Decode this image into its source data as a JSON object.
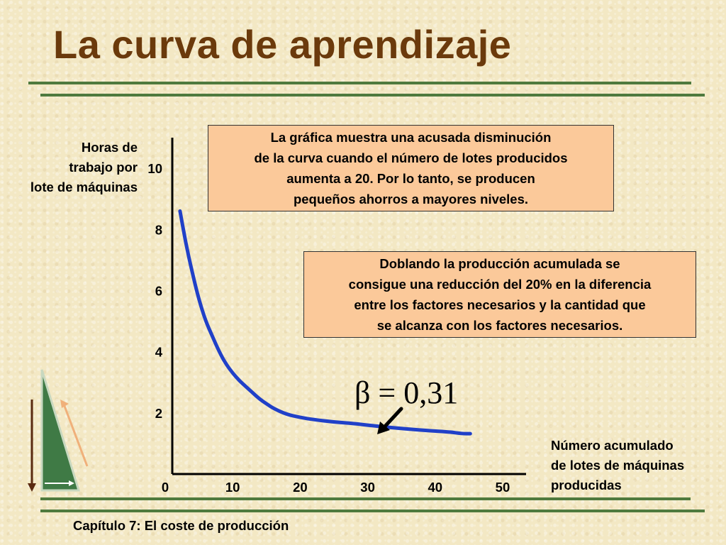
{
  "slide": {
    "title": "La curva de aprendizaje",
    "footer": "Capítulo 7: El coste de producción"
  },
  "annotations": {
    "box1_lines": [
      "La gráfica muestra una acusada disminución",
      "de la curva cuando el número de lotes producidos",
      "aumenta a 20. Por lo tanto, se producen",
      "pequeños ahorros a mayores niveles."
    ],
    "box2_lines": [
      "Doblando la producción acumulada se",
      "consigue una reducción del 20% en la diferencia",
      "entre los factores necesarios y la cantidad que",
      "se alcanza con los factores necesarios."
    ],
    "equation": "β = 0,31"
  },
  "colors": {
    "title": "#6b3a0c",
    "rule": "#4f7a3e",
    "curve": "#2040c8",
    "box_fill": "#fbc99a",
    "triangle": "#3f7a45"
  },
  "decoration": {
    "icon": "green-triangle-with-arrows-icon"
  },
  "chart_data": {
    "type": "line",
    "ylabel_lines": [
      "Horas de",
      "trabajo por",
      "lote de máquinas"
    ],
    "xlabel_lines": [
      "Número acumulado",
      "de lotes de máquinas",
      "producidas"
    ],
    "x_ticks": [
      "0",
      "10",
      "20",
      "30",
      "40",
      "50"
    ],
    "y_ticks": [
      "2",
      "4",
      "6",
      "8",
      "10"
    ],
    "xlim": [
      0,
      52
    ],
    "ylim": [
      0,
      11
    ],
    "series": [
      {
        "points": [
          [
            2.2,
            8.6
          ],
          [
            3,
            7.6
          ],
          [
            4,
            6.6
          ],
          [
            5,
            5.7
          ],
          [
            6,
            5.0
          ],
          [
            7,
            4.5
          ],
          [
            8,
            4.0
          ],
          [
            9,
            3.6
          ],
          [
            10,
            3.3
          ],
          [
            11,
            3.05
          ],
          [
            12,
            2.85
          ],
          [
            13,
            2.65
          ],
          [
            14,
            2.45
          ],
          [
            15,
            2.3
          ],
          [
            16,
            2.15
          ],
          [
            18,
            1.95
          ],
          [
            20,
            1.85
          ],
          [
            22,
            1.78
          ],
          [
            25,
            1.7
          ],
          [
            28,
            1.65
          ],
          [
            30,
            1.6
          ],
          [
            33,
            1.53
          ],
          [
            36,
            1.47
          ],
          [
            39,
            1.42
          ],
          [
            42,
            1.38
          ],
          [
            44,
            1.32
          ],
          [
            45.2,
            1.32
          ]
        ]
      }
    ]
  }
}
